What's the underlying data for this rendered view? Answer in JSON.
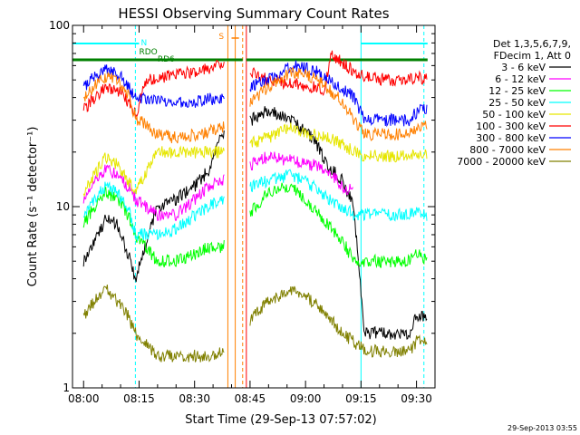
{
  "chart_data": {
    "type": "line",
    "title": "HESSI Observing Summary Count Rates",
    "xlabel": "Start Time (29-Sep-13 07:57:02)",
    "ylabel": "Count Rate (s⁻¹ detector⁻¹)",
    "x_unit": "UT",
    "xlim": [
      "07:57",
      "09:35"
    ],
    "ylim": [
      1,
      100
    ],
    "y_scale": "log",
    "x_ticks": [
      "08:00",
      "08:15",
      "08:30",
      "08:45",
      "09:00",
      "09:15",
      "09:30"
    ],
    "y_ticks": [
      "1",
      "10",
      "100"
    ],
    "timestamp": "29-Sep-2013 03:55",
    "legend": {
      "position": "right",
      "header": [
        "Det 1,3,5,6,7,9,",
        "FDecim 1, Att 0"
      ]
    },
    "flags": [
      {
        "label": "N",
        "color": "#00ffff"
      },
      {
        "label": "RDO",
        "color": "#008000"
      },
      {
        "label": "RD6",
        "color": "#008000"
      },
      {
        "label": "S",
        "color": "#ff8000"
      }
    ],
    "series": [
      {
        "name": "3 - 6 keV",
        "color": "#000000",
        "x": [
          "08:00",
          "08:03",
          "08:06",
          "08:09",
          "08:12",
          "08:14",
          "08:20",
          "08:25",
          "08:30",
          "08:34",
          "08:37",
          "08:50",
          "08:56",
          "09:02",
          "09:06",
          "09:10",
          "09:13",
          "09:16",
          "09:22",
          "09:28",
          "09:30",
          "09:33"
        ],
        "values": [
          5,
          6.5,
          8.5,
          8,
          5.5,
          4,
          10,
          11,
          13,
          16,
          24,
          34,
          30,
          24,
          17,
          14,
          10,
          2,
          2,
          2,
          2.5,
          2.5
        ]
      },
      {
        "name": "6 - 12 keV",
        "color": "#ff00ff",
        "x": [
          "08:00",
          "08:03",
          "08:06",
          "08:09",
          "08:12",
          "08:14",
          "08:20",
          "08:25",
          "08:30",
          "08:34",
          "08:37",
          "08:50",
          "08:56",
          "09:02",
          "09:06",
          "09:10",
          "09:13"
        ],
        "values": [
          11,
          14,
          16,
          15,
          13,
          11,
          9,
          9,
          11,
          13,
          14,
          19,
          18,
          17,
          16,
          13,
          12
        ]
      },
      {
        "name": "12 - 25 keV",
        "color": "#00ff00",
        "x": [
          "08:00",
          "08:03",
          "08:06",
          "08:09",
          "08:12",
          "08:14",
          "08:20",
          "08:25",
          "08:30",
          "08:34",
          "08:37",
          "08:50",
          "08:56",
          "09:02",
          "09:06",
          "09:10",
          "09:13",
          "09:16",
          "09:22",
          "09:28",
          "09:30",
          "09:33"
        ],
        "values": [
          8,
          10,
          12,
          11,
          9,
          7,
          5,
          5,
          5.5,
          6,
          6,
          12,
          13,
          10,
          8,
          6.5,
          5,
          5,
          5,
          5,
          5.5,
          5
        ]
      },
      {
        "name": "25 - 50 keV",
        "color": "#00ffff",
        "x": [
          "08:00",
          "08:03",
          "08:06",
          "08:09",
          "08:12",
          "08:14",
          "08:20",
          "08:25",
          "08:30",
          "08:34",
          "08:37",
          "08:50",
          "08:56",
          "09:02",
          "09:06",
          "09:10",
          "09:13",
          "09:16",
          "09:22",
          "09:28",
          "09:30",
          "09:33"
        ],
        "values": [
          9,
          11,
          13,
          12,
          10,
          7,
          7,
          7.5,
          9,
          10,
          11,
          14,
          15,
          13,
          11,
          10,
          9,
          9,
          9,
          9,
          9.5,
          9
        ]
      },
      {
        "name": "50 - 100 keV",
        "color": "#e6e600",
        "x": [
          "08:00",
          "08:03",
          "08:06",
          "08:09",
          "08:12",
          "08:14",
          "08:20",
          "08:25",
          "08:30",
          "08:34",
          "08:37",
          "08:50",
          "08:56",
          "09:02",
          "09:06",
          "09:10",
          "09:13",
          "09:16",
          "09:22",
          "09:28",
          "09:30",
          "09:33"
        ],
        "values": [
          12,
          15,
          19,
          17,
          14,
          12,
          20,
          20,
          20,
          20,
          20,
          24,
          27,
          25,
          24,
          22,
          20,
          19,
          19,
          19,
          20,
          19
        ]
      },
      {
        "name": "100 - 300 keV",
        "color": "#ff0000",
        "x": [
          "08:00",
          "08:03",
          "08:06",
          "08:09",
          "08:12",
          "08:14",
          "08:17",
          "08:22",
          "08:28",
          "08:34",
          "08:38",
          "08:50",
          "08:56",
          "09:02",
          "09:05",
          "09:07",
          "09:10",
          "09:13",
          "09:16",
          "09:22",
          "09:28",
          "09:30",
          "09:33"
        ],
        "values": [
          34,
          40,
          45,
          44,
          38,
          32,
          50,
          52,
          55,
          58,
          64,
          50,
          48,
          46,
          44,
          70,
          62,
          56,
          52,
          50,
          50,
          52,
          50
        ]
      },
      {
        "name": "300 - 800 keV",
        "color": "#0000ff",
        "x": [
          "08:00",
          "08:03",
          "08:06",
          "08:09",
          "08:12",
          "08:14",
          "08:20",
          "08:25",
          "08:30",
          "08:34",
          "08:37",
          "08:50",
          "08:56",
          "09:02",
          "09:06",
          "09:10",
          "09:13",
          "09:16",
          "09:22",
          "09:28",
          "09:30",
          "09:33"
        ],
        "values": [
          46,
          52,
          58,
          55,
          47,
          40,
          39,
          38,
          38,
          39,
          40,
          50,
          60,
          57,
          50,
          45,
          40,
          30,
          30,
          30,
          33,
          35
        ]
      },
      {
        "name": "800 - 7000 keV",
        "color": "#ff8000",
        "x": [
          "08:00",
          "08:03",
          "08:06",
          "08:09",
          "08:12",
          "08:14",
          "08:20",
          "08:25",
          "08:30",
          "08:34",
          "08:37",
          "08:50",
          "08:56",
          "09:02",
          "09:06",
          "09:10",
          "09:13",
          "09:16",
          "09:22",
          "09:28",
          "09:30",
          "09:33"
        ],
        "values": [
          39,
          46,
          52,
          50,
          42,
          31,
          25,
          24,
          25,
          26,
          27,
          46,
          55,
          52,
          45,
          38,
          30,
          25,
          25,
          25,
          27,
          29
        ]
      },
      {
        "name": "7000 - 20000 keV",
        "color": "#808000",
        "x": [
          "08:00",
          "08:03",
          "08:06",
          "08:09",
          "08:12",
          "08:14",
          "08:20",
          "08:25",
          "08:30",
          "08:34",
          "08:37",
          "08:50",
          "08:56",
          "09:02",
          "09:06",
          "09:10",
          "09:13",
          "09:16",
          "09:22",
          "09:28",
          "09:30",
          "09:33"
        ],
        "values": [
          2.5,
          3,
          3.5,
          3,
          2.5,
          2,
          1.5,
          1.5,
          1.5,
          1.5,
          1.6,
          3,
          3.5,
          3,
          2.5,
          2,
          1.8,
          1.6,
          1.6,
          1.6,
          1.8,
          1.8
        ]
      }
    ]
  }
}
